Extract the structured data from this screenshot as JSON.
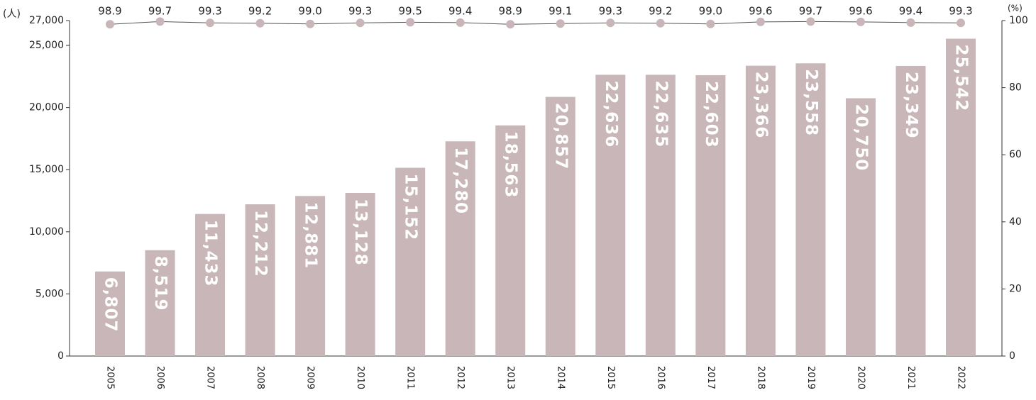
{
  "chart_data": {
    "type": "bar",
    "y_unit": "(人)",
    "y2_unit": "(%)",
    "categories": [
      "2005",
      "2006",
      "2007",
      "2008",
      "2009",
      "2010",
      "2011",
      "2012",
      "2013",
      "2014",
      "2015",
      "2016",
      "2017",
      "2018",
      "2019",
      "2020",
      "2021",
      "2022"
    ],
    "series": [
      {
        "type": "bar",
        "color": "#c9b6b8",
        "values": [
          6807,
          8519,
          11433,
          12212,
          12881,
          13128,
          15152,
          17280,
          18563,
          20857,
          22636,
          22635,
          22603,
          23366,
          23558,
          20750,
          23349,
          25542
        ],
        "value_labels": [
          "6,807",
          "8,519",
          "11,433",
          "12,212",
          "12,881",
          "13,128",
          "15,152",
          "17,280",
          "18,563",
          "20,857",
          "22,636",
          "22,635",
          "22,603",
          "23,366",
          "23,558",
          "20,750",
          "23,349",
          "25,542"
        ]
      },
      {
        "type": "line",
        "axis": "y2",
        "color": "#555555",
        "marker_color": "#c9b6b8",
        "values": [
          98.9,
          99.7,
          99.3,
          99.2,
          99.0,
          99.3,
          99.5,
          99.4,
          98.9,
          99.1,
          99.3,
          99.2,
          99.0,
          99.6,
          99.7,
          99.6,
          99.4,
          99.3
        ],
        "value_labels": [
          "98.9",
          "99.7",
          "99.3",
          "99.2",
          "99.0",
          "99.3",
          "99.5",
          "99.4",
          "98.9",
          "99.1",
          "99.3",
          "99.2",
          "99.0",
          "99.6",
          "99.7",
          "99.6",
          "99.4",
          "99.3"
        ]
      }
    ],
    "ylim": [
      0,
      27000
    ],
    "yticks": [
      {
        "value": 0,
        "label": "0"
      },
      {
        "value": 5000,
        "label": "5,000"
      },
      {
        "value": 10000,
        "label": "10,000"
      },
      {
        "value": 15000,
        "label": "15,000"
      },
      {
        "value": 20000,
        "label": "20,000"
      },
      {
        "value": 25000,
        "label": "25,000"
      },
      {
        "value": 27000,
        "label": "27,000"
      }
    ],
    "y2lim": [
      0,
      100
    ],
    "y2ticks": [
      0,
      20,
      40,
      60,
      80,
      100
    ]
  }
}
